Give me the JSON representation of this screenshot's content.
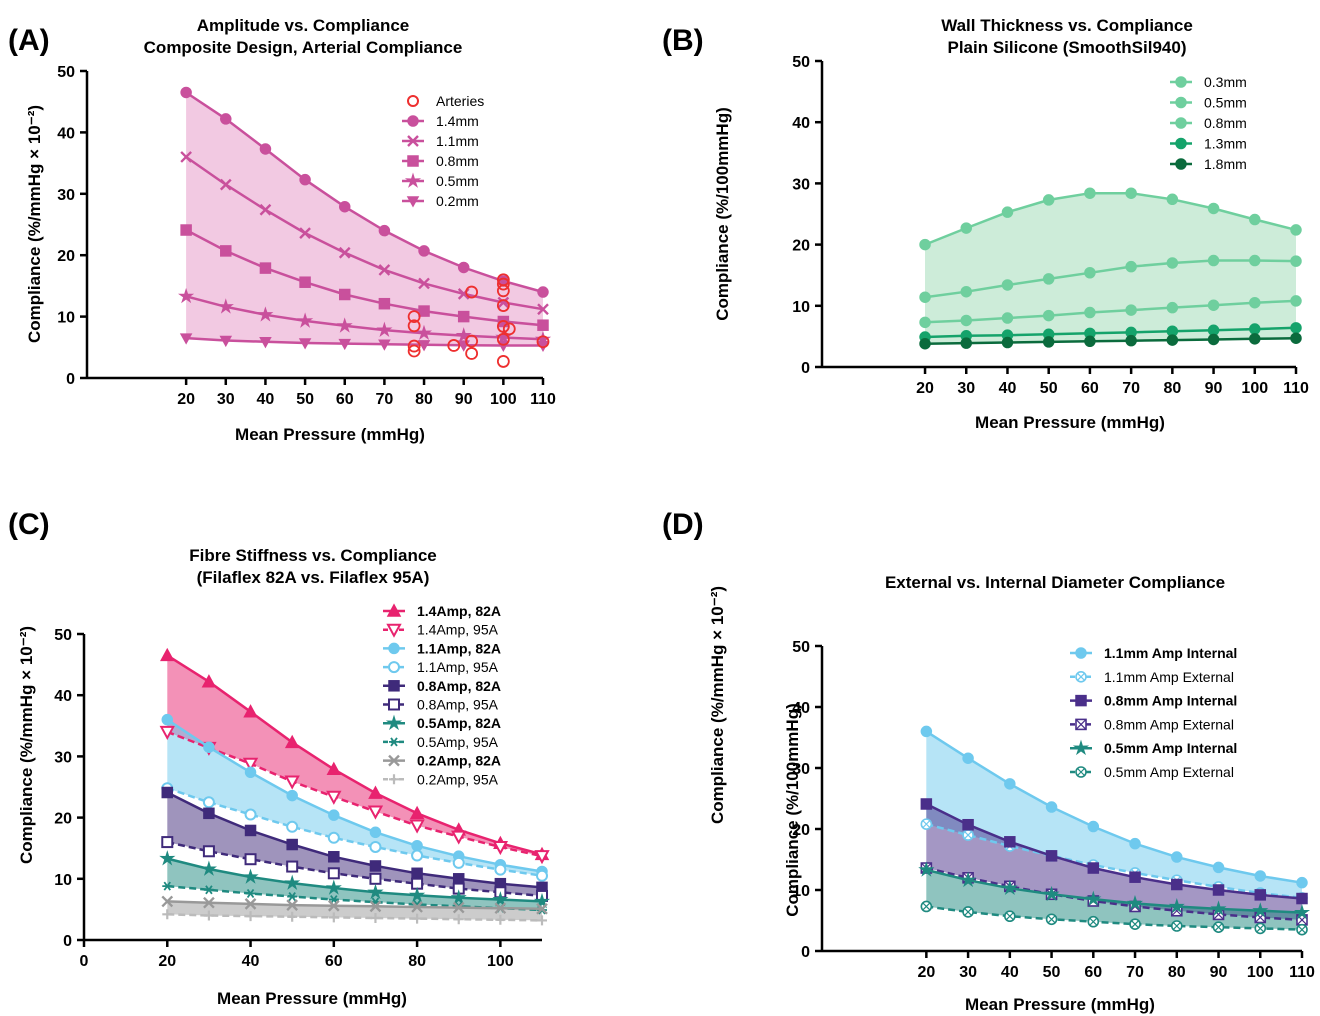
{
  "panels": {
    "a": {
      "letter": "(A)",
      "title1": "Amplitude vs. Compliance",
      "title2": "Composite Design, Arterial Compliance",
      "xlabel": "Mean Pressure (mmHg)",
      "ylabel": "Compliance (%/mmHg × 10⁻²)"
    },
    "b": {
      "letter": "(B)",
      "title1": "Wall Thickness vs. Compliance",
      "title2": "Plain Silicone (SmoothSil940)",
      "xlabel": "Mean Pressure (mmHg)",
      "ylabel": "Compliance (%/100mmHg)"
    },
    "c": {
      "letter": "(C)",
      "title1": "Fibre Stiffness vs. Compliance",
      "title2": "(Filaflex 82A vs. Filaflex 95A)",
      "xlabel": "Mean Pressure (mmHg)",
      "ylabel": "Compliance (%/mmHg × 10⁻²)"
    },
    "d": {
      "letter": "(D)",
      "title1": "External vs. Internal Diameter Compliance",
      "xlabel": "Mean Pressure (mmHg)",
      "ylabel": "Compliance (%/100mmHg)",
      "ylabel_top": "Compliance (%/mmHg × 10⁻²)"
    }
  },
  "chart_data": [
    {
      "id": "A",
      "type": "line",
      "title": "Amplitude vs. Compliance\nComposite Design, Arterial Compliance",
      "xlabel": "Mean Pressure (mmHg)",
      "ylabel": "Compliance (%/mmHg × 10⁻²)",
      "xlim": [
        -5,
        110
      ],
      "ylim": [
        0,
        50
      ],
      "xticks": [
        20,
        30,
        40,
        50,
        60,
        70,
        80,
        90,
        100,
        110
      ],
      "yticks": [
        0,
        10,
        20,
        30,
        40,
        50
      ],
      "legend_position": "top-right",
      "grid": false,
      "x": [
        20,
        30,
        40,
        50,
        60,
        70,
        80,
        90,
        100,
        110
      ],
      "series": [
        {
          "name": "1.4mm",
          "marker": "circle",
          "color": "#c9509c",
          "values": [
            46.5,
            42.2,
            37.3,
            32.3,
            27.9,
            24.0,
            20.7,
            18.0,
            15.8,
            14.0
          ]
        },
        {
          "name": "1.1mm",
          "marker": "x",
          "color": "#c9509c",
          "values": [
            36.0,
            31.5,
            27.4,
            23.6,
            20.4,
            17.6,
            15.4,
            13.7,
            12.3,
            11.2
          ]
        },
        {
          "name": "0.8mm",
          "marker": "square",
          "color": "#c9509c",
          "values": [
            24.1,
            20.7,
            17.9,
            15.6,
            13.6,
            12.1,
            10.9,
            10.0,
            9.2,
            8.6
          ]
        },
        {
          "name": "0.5mm",
          "marker": "star",
          "color": "#c9509c",
          "values": [
            13.3,
            11.6,
            10.3,
            9.3,
            8.5,
            7.8,
            7.3,
            6.9,
            6.6,
            6.3
          ]
        },
        {
          "name": "0.2mm",
          "marker": "tri-down",
          "color": "#c9509c",
          "values": [
            6.5,
            6.1,
            5.9,
            5.7,
            5.6,
            5.5,
            5.4,
            5.35,
            5.3,
            5.3
          ]
        }
      ],
      "fill_between": [
        "1.4mm",
        "0.2mm"
      ],
      "fill_color": "#f2c9e2",
      "scatter": {
        "name": "Arteries",
        "marker": "open-circle",
        "color": "#ee2f2f",
        "points": [
          [
            77.5,
            10.0
          ],
          [
            77.5,
            8.5
          ],
          [
            77.5,
            5.2
          ],
          [
            77.5,
            4.4
          ],
          [
            87.5,
            5.3
          ],
          [
            92,
            14.0
          ],
          [
            92,
            6.0
          ],
          [
            92,
            4.0
          ],
          [
            100,
            16.0
          ],
          [
            100,
            15.3
          ],
          [
            100,
            14.2
          ],
          [
            100,
            11.8
          ],
          [
            100,
            8.4
          ],
          [
            100,
            6.3
          ],
          [
            100,
            2.7
          ],
          [
            101.5,
            8.0
          ],
          [
            110,
            5.9
          ]
        ]
      }
    },
    {
      "id": "B",
      "type": "line",
      "title": "Wall Thickness vs. Compliance\nPlain Silicone (SmoothSil940)",
      "xlabel": "Mean Pressure (mmHg)",
      "ylabel": "Compliance (%/100mmHg)",
      "xlim": [
        -5,
        110
      ],
      "ylim": [
        0,
        50
      ],
      "xticks": [
        20,
        30,
        40,
        50,
        60,
        70,
        80,
        90,
        100,
        110
      ],
      "yticks": [
        0,
        10,
        20,
        30,
        40,
        50
      ],
      "legend_position": "top-right",
      "grid": false,
      "x": [
        20,
        30,
        40,
        50,
        60,
        70,
        80,
        90,
        100,
        110
      ],
      "series": [
        {
          "name": "0.3mm",
          "marker": "circle",
          "color": "#6fcf9e",
          "values": [
            20.0,
            22.7,
            25.3,
            27.3,
            28.4,
            28.4,
            27.4,
            25.9,
            24.1,
            22.4
          ]
        },
        {
          "name": "0.5mm",
          "marker": "circle",
          "color": "#6fcf9e",
          "values": [
            11.4,
            12.3,
            13.4,
            14.4,
            15.4,
            16.4,
            17.0,
            17.4,
            17.4,
            17.3
          ]
        },
        {
          "name": "0.8mm",
          "marker": "circle",
          "color": "#6fcf9e",
          "values": [
            7.3,
            7.6,
            8.0,
            8.4,
            8.9,
            9.3,
            9.7,
            10.1,
            10.5,
            10.8
          ]
        },
        {
          "name": "1.3mm",
          "marker": "circle",
          "color": "#15a36b",
          "values": [
            4.9,
            5.1,
            5.2,
            5.35,
            5.5,
            5.65,
            5.85,
            6.0,
            6.2,
            6.4
          ]
        },
        {
          "name": "1.8mm",
          "marker": "circle",
          "color": "#0b6b3d",
          "values": [
            3.8,
            3.9,
            4.0,
            4.1,
            4.2,
            4.3,
            4.4,
            4.5,
            4.6,
            4.7
          ]
        }
      ],
      "fill_between": [
        "0.3mm",
        "1.8mm"
      ],
      "fill_color": "#cdecd9"
    },
    {
      "id": "C",
      "type": "line",
      "title": "Fibre Stiffness vs. Compliance\n(Filaflex 82A vs. Filaflex 95A)",
      "xlabel": "Mean Pressure (mmHg)",
      "ylabel": "Compliance (%/mmHg × 10⁻²)",
      "xlim": [
        0,
        110
      ],
      "ylim": [
        0,
        50
      ],
      "xticks": [
        0,
        20,
        40,
        60,
        80,
        100
      ],
      "yticks": [
        0,
        10,
        20,
        30,
        40,
        50
      ],
      "legend_position": "top-right",
      "grid": false,
      "x": [
        20,
        30,
        40,
        50,
        60,
        70,
        80,
        90,
        100,
        110
      ],
      "series": [
        {
          "name": "1.4Amp, 82A",
          "marker": "triangle",
          "color": "#e8236f",
          "dashed": false,
          "values": [
            46.5,
            42.2,
            37.3,
            32.3,
            27.9,
            24.0,
            20.7,
            18.0,
            15.8,
            14.0
          ]
        },
        {
          "name": "1.4Amp, 95A",
          "marker": "open-tri-down",
          "color": "#e8236f",
          "dashed": true,
          "values": [
            34.0,
            31.4,
            28.8,
            25.9,
            23.4,
            21.0,
            18.7,
            16.9,
            15.2,
            13.7
          ]
        },
        {
          "name": "1.1Amp, 82A",
          "marker": "circle",
          "color": "#6ec9ee",
          "dashed": false,
          "values": [
            36.0,
            31.5,
            27.4,
            23.6,
            20.4,
            17.6,
            15.4,
            13.7,
            12.3,
            11.2
          ]
        },
        {
          "name": "1.1Amp, 95A",
          "marker": "open-circle",
          "color": "#6ec9ee",
          "dashed": true,
          "values": [
            24.8,
            22.5,
            20.5,
            18.5,
            16.7,
            15.2,
            13.8,
            12.6,
            11.5,
            10.5
          ]
        },
        {
          "name": "0.8Amp, 82A",
          "marker": "square",
          "color": "#3f2a7a",
          "dashed": false,
          "values": [
            24.1,
            20.7,
            17.9,
            15.6,
            13.6,
            12.1,
            10.9,
            10.0,
            9.2,
            8.6
          ]
        },
        {
          "name": "0.8Amp, 95A",
          "marker": "open-square",
          "color": "#3f2a7a",
          "dashed": true,
          "values": [
            16.0,
            14.5,
            13.2,
            12.0,
            10.9,
            10.0,
            9.2,
            8.4,
            7.8,
            7.2
          ]
        },
        {
          "name": "0.5Amp, 82A",
          "marker": "star",
          "color": "#1f8a80",
          "dashed": false,
          "values": [
            13.3,
            11.6,
            10.3,
            9.3,
            8.5,
            7.8,
            7.3,
            6.9,
            6.6,
            6.3
          ]
        },
        {
          "name": "0.5Amp, 95A",
          "marker": "asterisk",
          "color": "#1f8a80",
          "dashed": true,
          "values": [
            8.8,
            8.2,
            7.6,
            7.1,
            6.6,
            6.2,
            5.8,
            5.5,
            5.2,
            4.9
          ]
        },
        {
          "name": "0.2Amp, 82A",
          "marker": "x",
          "color": "#999999",
          "dashed": false,
          "values": [
            6.3,
            6.1,
            5.9,
            5.7,
            5.6,
            5.5,
            5.4,
            5.3,
            5.2,
            5.1
          ]
        },
        {
          "name": "0.2Amp, 95A",
          "marker": "plus",
          "color": "#bbbbbb",
          "dashed": true,
          "values": [
            4.2,
            4.0,
            3.9,
            3.8,
            3.7,
            3.6,
            3.5,
            3.4,
            3.3,
            3.2
          ]
        }
      ],
      "fills": [
        {
          "between": [
            "1.4Amp, 82A",
            "1.4Amp, 95A"
          ],
          "color": "#e8236f"
        },
        {
          "between": [
            "1.1Amp, 82A",
            "1.1Amp, 95A"
          ],
          "color": "#6ec9ee"
        },
        {
          "between": [
            "0.8Amp, 82A",
            "0.8Amp, 95A"
          ],
          "color": "#3f2a7a"
        },
        {
          "between": [
            "0.5Amp, 82A",
            "0.5Amp, 95A"
          ],
          "color": "#1f8a80"
        },
        {
          "between": [
            "0.2Amp, 82A",
            "0.2Amp, 95A"
          ],
          "color": "#999999"
        }
      ]
    },
    {
      "id": "D",
      "type": "line",
      "title": "External vs. Internal Diameter Compliance",
      "xlabel": "Mean Pressure (mmHg)",
      "ylabel": "Compliance (%/100mmHg)",
      "xlim": [
        -5,
        110
      ],
      "ylim": [
        0,
        50
      ],
      "xticks": [
        20,
        30,
        40,
        50,
        60,
        70,
        80,
        90,
        100,
        110
      ],
      "yticks": [
        0,
        10,
        20,
        30,
        40,
        50
      ],
      "legend_position": "top-right",
      "grid": false,
      "x": [
        20,
        30,
        40,
        50,
        60,
        70,
        80,
        90,
        100,
        110
      ],
      "series": [
        {
          "name": "1.1mm Amp Internal",
          "marker": "circle",
          "color": "#6ec9ee",
          "dashed": false,
          "values": [
            36.0,
            31.6,
            27.4,
            23.6,
            20.4,
            17.6,
            15.4,
            13.7,
            12.3,
            11.2
          ]
        },
        {
          "name": "1.1mm Amp External",
          "marker": "open-circle-x",
          "color": "#6ec9ee",
          "dashed": true,
          "values": [
            20.8,
            19.0,
            17.2,
            15.6,
            14.1,
            12.8,
            11.6,
            10.5,
            9.5,
            8.7
          ]
        },
        {
          "name": "0.8mm Amp Internal",
          "marker": "square",
          "color": "#4a2f8a",
          "dashed": false,
          "values": [
            24.1,
            20.7,
            17.9,
            15.6,
            13.6,
            12.1,
            10.9,
            10.0,
            9.2,
            8.6
          ]
        },
        {
          "name": "0.8mm Amp External",
          "marker": "open-square-x",
          "color": "#4a2f8a",
          "dashed": true,
          "values": [
            13.6,
            12.0,
            10.6,
            9.3,
            8.2,
            7.3,
            6.6,
            6.0,
            5.5,
            5.1
          ]
        },
        {
          "name": "0.5mm Amp Internal",
          "marker": "star",
          "color": "#1f8a80",
          "dashed": false,
          "values": [
            13.3,
            11.6,
            10.3,
            9.3,
            8.5,
            7.8,
            7.3,
            6.9,
            6.6,
            6.3
          ]
        },
        {
          "name": "0.5mm Amp External",
          "marker": "open-circle-x",
          "color": "#1f8a80",
          "dashed": true,
          "values": [
            7.3,
            6.4,
            5.7,
            5.2,
            4.8,
            4.4,
            4.1,
            3.9,
            3.7,
            3.5
          ]
        }
      ],
      "fills": [
        {
          "between": [
            "1.1mm Amp Internal",
            "1.1mm Amp External"
          ],
          "color": "#6ec9ee"
        },
        {
          "between": [
            "0.8mm Amp Internal",
            "0.8mm Amp External"
          ],
          "color": "#4a2f8a"
        },
        {
          "between": [
            "0.5mm Amp Internal",
            "0.5mm Amp External"
          ],
          "color": "#1f8a80"
        }
      ]
    }
  ]
}
